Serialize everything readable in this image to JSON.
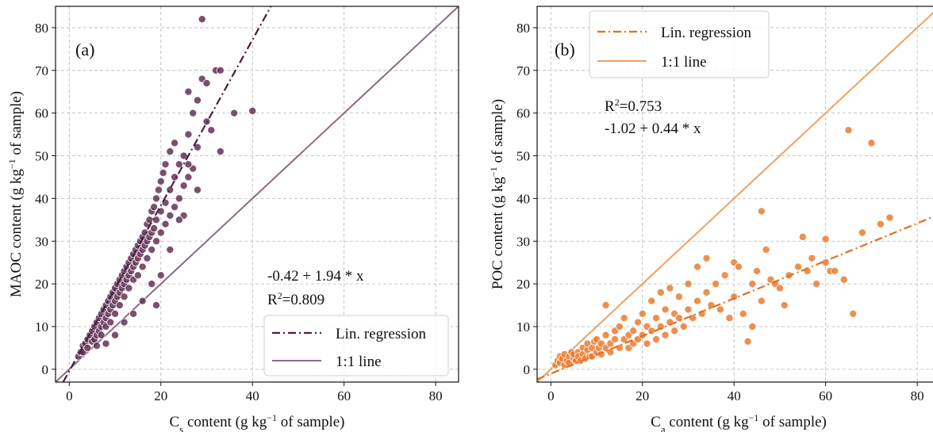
{
  "chart_data": [
    {
      "type": "scatter",
      "panel_label": "(a)",
      "xlabel": {
        "pre": "C",
        "sub": "s",
        "mid": " content (g kg",
        "sup": "−1",
        "post": " of sample)"
      },
      "ylabel": {
        "pre": "MAOC content (g kg",
        "sup": "−1",
        "post": " of sample)"
      },
      "xlim": [
        -3,
        85
      ],
      "ylim": [
        -3,
        85
      ],
      "xticks": [
        0,
        20,
        40,
        60,
        80
      ],
      "yticks": [
        0,
        10,
        20,
        30,
        40,
        50,
        60,
        70,
        80
      ],
      "grid": true,
      "equation": "-0.42 + 1.94 * x",
      "r2": {
        "pre": "R",
        "sup": "2",
        "post": "=0.809"
      },
      "regression": {
        "intercept": -0.42,
        "slope": 1.94
      },
      "legend": {
        "position": "lower-right",
        "entries": [
          {
            "label": "Lin. regression",
            "style": "dashdot"
          },
          {
            "label": "1:1 line",
            "style": "solid"
          }
        ]
      },
      "colors": {
        "points": "#5c2a4e",
        "regression": "#4a1e40",
        "identity": "#8a6a84"
      },
      "points": [
        [
          2,
          3
        ],
        [
          2.5,
          4
        ],
        [
          3,
          5.5
        ],
        [
          3,
          4
        ],
        [
          3.5,
          6
        ],
        [
          4,
          7
        ],
        [
          4,
          5
        ],
        [
          4.5,
          8
        ],
        [
          5,
          9
        ],
        [
          5,
          6.5
        ],
        [
          5.5,
          10
        ],
        [
          5.5,
          7
        ],
        [
          6,
          11
        ],
        [
          6,
          8
        ],
        [
          6.5,
          12
        ],
        [
          6.5,
          9
        ],
        [
          7,
          13
        ],
        [
          7,
          10
        ],
        [
          7,
          8
        ],
        [
          7.5,
          14
        ],
        [
          7.5,
          11
        ],
        [
          8,
          15
        ],
        [
          8,
          12
        ],
        [
          8,
          10
        ],
        [
          8.5,
          16
        ],
        [
          8.5,
          13
        ],
        [
          9,
          17
        ],
        [
          9,
          14
        ],
        [
          9,
          11
        ],
        [
          9.5,
          18
        ],
        [
          9.5,
          15
        ],
        [
          10,
          19
        ],
        [
          10,
          16
        ],
        [
          10,
          13
        ],
        [
          10.5,
          20
        ],
        [
          10.5,
          17
        ],
        [
          11,
          21
        ],
        [
          11,
          18
        ],
        [
          11,
          15
        ],
        [
          11.5,
          22
        ],
        [
          11.5,
          19
        ],
        [
          12,
          23
        ],
        [
          12,
          20
        ],
        [
          12,
          17
        ],
        [
          12.5,
          24
        ],
        [
          12.5,
          21
        ],
        [
          13,
          25
        ],
        [
          13,
          22
        ],
        [
          13,
          19
        ],
        [
          13.5,
          26
        ],
        [
          13.5,
          23
        ],
        [
          14,
          27
        ],
        [
          14,
          24
        ],
        [
          14,
          21
        ],
        [
          14.5,
          28
        ],
        [
          14.5,
          25
        ],
        [
          15,
          29
        ],
        [
          15,
          26
        ],
        [
          15,
          22
        ],
        [
          15.5,
          30
        ],
        [
          15.5,
          27
        ],
        [
          16,
          31
        ],
        [
          16,
          28
        ],
        [
          16,
          24
        ],
        [
          16.5,
          32
        ],
        [
          16.5,
          29
        ],
        [
          17,
          34
        ],
        [
          17,
          30
        ],
        [
          17,
          26
        ],
        [
          17.5,
          35
        ],
        [
          17.5,
          31
        ],
        [
          18,
          37
        ],
        [
          18,
          32
        ],
        [
          18,
          28
        ],
        [
          18.5,
          38
        ],
        [
          18.5,
          33
        ],
        [
          19,
          40
        ],
        [
          19,
          35
        ],
        [
          19,
          30
        ],
        [
          19.5,
          42
        ],
        [
          20,
          44
        ],
        [
          20,
          37
        ],
        [
          20,
          32
        ],
        [
          20.5,
          46
        ],
        [
          21,
          48
        ],
        [
          21,
          39
        ],
        [
          21,
          34
        ],
        [
          22,
          51
        ],
        [
          22,
          42
        ],
        [
          22,
          36
        ],
        [
          23,
          53
        ],
        [
          23,
          45
        ],
        [
          23,
          38
        ],
        [
          24,
          48
        ],
        [
          24,
          40
        ],
        [
          25,
          50
        ],
        [
          25,
          43
        ],
        [
          25,
          36
        ],
        [
          26,
          55
        ],
        [
          26,
          45
        ],
        [
          26,
          65
        ],
        [
          27,
          60
        ],
        [
          27,
          47
        ],
        [
          28,
          63
        ],
        [
          28,
          52
        ],
        [
          29,
          68
        ],
        [
          29,
          82
        ],
        [
          30,
          67
        ],
        [
          30,
          58
        ],
        [
          31,
          56
        ],
        [
          32,
          70
        ],
        [
          33,
          70
        ],
        [
          33,
          51
        ],
        [
          36,
          60
        ],
        [
          40,
          60.5
        ],
        [
          19,
          15
        ],
        [
          10,
          8
        ],
        [
          6,
          5.5
        ],
        [
          8,
          6
        ],
        [
          12,
          11
        ],
        [
          14,
          13
        ],
        [
          16,
          16
        ],
        [
          18,
          20
        ],
        [
          20,
          22
        ],
        [
          22,
          28
        ],
        [
          24,
          35
        ],
        [
          26,
          48
        ],
        [
          28,
          42
        ]
      ]
    },
    {
      "type": "scatter",
      "panel_label": "(b)",
      "xlabel": {
        "pre": "C",
        "sub": "a",
        "mid": " content (g kg",
        "sup": "−1",
        "post": " of sample)"
      },
      "ylabel": {
        "pre": "POC content (g kg",
        "sup": "−1",
        "post": " of sample)"
      },
      "xlim": [
        -3,
        85
      ],
      "ylim": [
        -3,
        85
      ],
      "xticks": [
        0,
        20,
        40,
        60,
        80
      ],
      "yticks": [
        0,
        10,
        20,
        30,
        40,
        50,
        60,
        70,
        80
      ],
      "grid": true,
      "equation": "-1.02 + 0.44 * x",
      "r2": {
        "pre": "R",
        "sup": "2",
        "post": "=0.753"
      },
      "regression": {
        "intercept": -1.02,
        "slope": 0.44
      },
      "legend": {
        "position": "upper-left",
        "entries": [
          {
            "label": "Lin. regression",
            "style": "dashdot"
          },
          {
            "label": "1:1 line",
            "style": "solid"
          }
        ]
      },
      "colors": {
        "points": "#e8782a",
        "regression": "#e07020",
        "identity": "#f0a060"
      },
      "points": [
        [
          1,
          1
        ],
        [
          1.5,
          2
        ],
        [
          2,
          1.5
        ],
        [
          2,
          3
        ],
        [
          2.5,
          2.5
        ],
        [
          3,
          1
        ],
        [
          3,
          3.5
        ],
        [
          3.5,
          2
        ],
        [
          4,
          3
        ],
        [
          4,
          1.5
        ],
        [
          4.5,
          4
        ],
        [
          5,
          2.5
        ],
        [
          5,
          3.5
        ],
        [
          5.5,
          2
        ],
        [
          6,
          4
        ],
        [
          6,
          3
        ],
        [
          6.5,
          2
        ],
        [
          7,
          5
        ],
        [
          7,
          3.5
        ],
        [
          7.5,
          2.5
        ],
        [
          8,
          4.5
        ],
        [
          8,
          6
        ],
        [
          8.5,
          3
        ],
        [
          9,
          5
        ],
        [
          9,
          3
        ],
        [
          9.5,
          6.5
        ],
        [
          10,
          4
        ],
        [
          10,
          7
        ],
        [
          10.5,
          5
        ],
        [
          11,
          3.5
        ],
        [
          11,
          6
        ],
        [
          12,
          8
        ],
        [
          12,
          5
        ],
        [
          12,
          15
        ],
        [
          13,
          6
        ],
        [
          13,
          4
        ],
        [
          14,
          7
        ],
        [
          14,
          9
        ],
        [
          15,
          5
        ],
        [
          15,
          10
        ],
        [
          16,
          7
        ],
        [
          16,
          12
        ],
        [
          17,
          8
        ],
        [
          17,
          5
        ],
        [
          18,
          9
        ],
        [
          18,
          6
        ],
        [
          19,
          11
        ],
        [
          19,
          7
        ],
        [
          20,
          8
        ],
        [
          20,
          13
        ],
        [
          21,
          6
        ],
        [
          21,
          10
        ],
        [
          22,
          9
        ],
        [
          22,
          16
        ],
        [
          23,
          7
        ],
        [
          23,
          12
        ],
        [
          24,
          10
        ],
        [
          24,
          18
        ],
        [
          25,
          8
        ],
        [
          25,
          14
        ],
        [
          26,
          11
        ],
        [
          26,
          19
        ],
        [
          27,
          9
        ],
        [
          27,
          13
        ],
        [
          28,
          12
        ],
        [
          28,
          17
        ],
        [
          29,
          10
        ],
        [
          30,
          14
        ],
        [
          30,
          20
        ],
        [
          31,
          12
        ],
        [
          32,
          16
        ],
        [
          32,
          24
        ],
        [
          33,
          13
        ],
        [
          34,
          18
        ],
        [
          34,
          26
        ],
        [
          35,
          15
        ],
        [
          36,
          20
        ],
        [
          37,
          14
        ],
        [
          38,
          22
        ],
        [
          39,
          12
        ],
        [
          40,
          25
        ],
        [
          40,
          17
        ],
        [
          41,
          24
        ],
        [
          42,
          13
        ],
        [
          43,
          6.5
        ],
        [
          44,
          20
        ],
        [
          44,
          10
        ],
        [
          45,
          23
        ],
        [
          46,
          37
        ],
        [
          46,
          16
        ],
        [
          47,
          28
        ],
        [
          48,
          21
        ],
        [
          49,
          20
        ],
        [
          50,
          19
        ],
        [
          51,
          15
        ],
        [
          52,
          22
        ],
        [
          54,
          24
        ],
        [
          55,
          31
        ],
        [
          56,
          23
        ],
        [
          57,
          26
        ],
        [
          58,
          20
        ],
        [
          60,
          30.5
        ],
        [
          60,
          25
        ],
        [
          61,
          23
        ],
        [
          62,
          23
        ],
        [
          64,
          21
        ],
        [
          65,
          56
        ],
        [
          66,
          13
        ],
        [
          68,
          32
        ],
        [
          70,
          53
        ],
        [
          72,
          34
        ],
        [
          74,
          35.5
        ]
      ]
    }
  ]
}
